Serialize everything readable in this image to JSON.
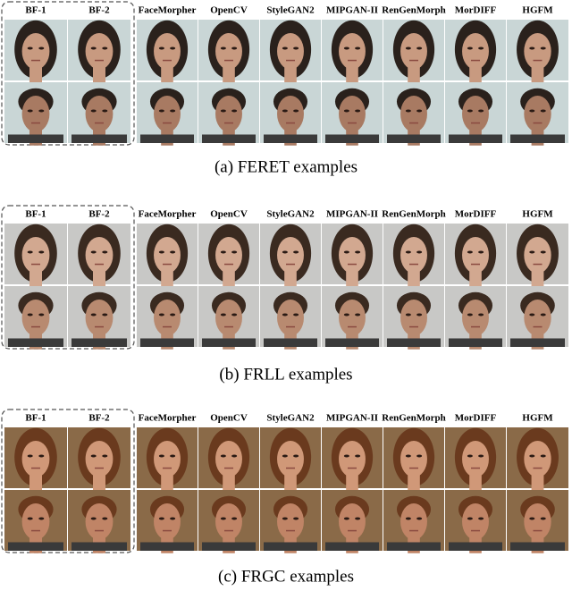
{
  "panels": [
    {
      "headers": [
        "BF-1",
        "BF-2",
        "FaceMorpher",
        "OpenCV",
        "StyleGAN2",
        "MIPGAN-II",
        "RenGenMorph",
        "MorDIFF",
        "HGFM"
      ],
      "caption": "(a)  FERET examples"
    },
    {
      "headers": [
        "BF-1",
        "BF-2",
        "FaceMorpher",
        "OpenCV",
        "StyleGAN2",
        "MIPGAN-II",
        "RenGenMorph",
        "MorDIFF",
        "HGFM"
      ],
      "caption": "(b)  FRLL examples"
    },
    {
      "headers": [
        "BF-1",
        "BF-2",
        "FaceMorpher",
        "OpenCV",
        "StyleGAN2",
        "MIPGAN-II",
        "RenGenMorph",
        "MorDIFF",
        "HGFM"
      ],
      "caption": "(c)  FRGC examples"
    }
  ]
}
